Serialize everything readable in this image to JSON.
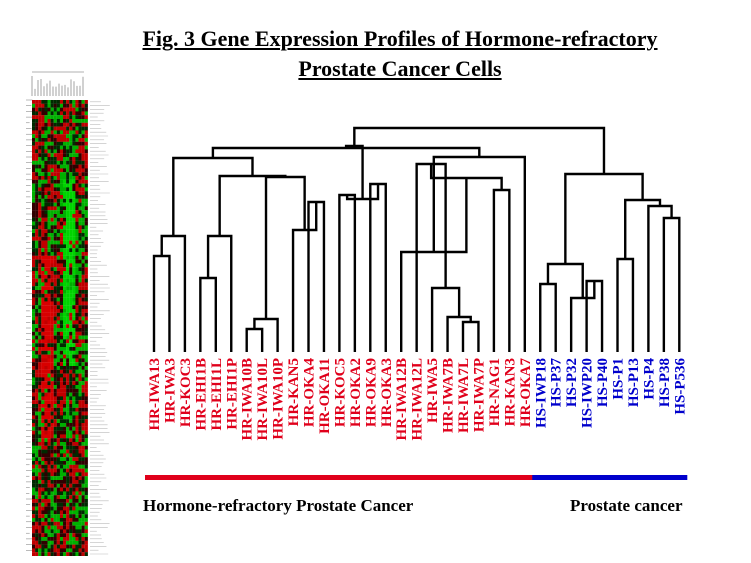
{
  "title": {
    "line1": "Fig. 3 Gene Expression Profiles of Hormone-refractory",
    "line2": "Prostate Cancer Cells"
  },
  "colors": {
    "hr": "#e0001b",
    "hs": "#0000cc",
    "heat_red": "#e00000",
    "heat_green": "#00c800",
    "heat_black": "#000000"
  },
  "samples": [
    {
      "label": "HR-IWA13",
      "group": "hr"
    },
    {
      "label": "HR-IWA3",
      "group": "hr"
    },
    {
      "label": "HR-KOC3",
      "group": "hr"
    },
    {
      "label": "HR-EHI1B",
      "group": "hr"
    },
    {
      "label": "HR-EHI1L",
      "group": "hr"
    },
    {
      "label": "HR-EHI1P",
      "group": "hr"
    },
    {
      "label": "HR-IWA10B",
      "group": "hr"
    },
    {
      "label": "HR-IWA10L",
      "group": "hr"
    },
    {
      "label": "HR-IWA10P",
      "group": "hr"
    },
    {
      "label": "HR-KAN5",
      "group": "hr"
    },
    {
      "label": "HR-OKA4",
      "group": "hr"
    },
    {
      "label": "HR-OKA11",
      "group": "hr"
    },
    {
      "label": "HR-KOC5",
      "group": "hr"
    },
    {
      "label": "HR-OKA2",
      "group": "hr"
    },
    {
      "label": "HR-OKA9",
      "group": "hr"
    },
    {
      "label": "HR-OKA3",
      "group": "hr"
    },
    {
      "label": "HR-IWA12B",
      "group": "hr"
    },
    {
      "label": "HR-IWA12L",
      "group": "hr"
    },
    {
      "label": "HR-IWA5",
      "group": "hr"
    },
    {
      "label": "HR-IWA7B",
      "group": "hr"
    },
    {
      "label": "HR-IWA7L",
      "group": "hr"
    },
    {
      "label": "HR-IWA7P",
      "group": "hr"
    },
    {
      "label": "HR-NAG1",
      "group": "hr"
    },
    {
      "label": "HR-KAN3",
      "group": "hr"
    },
    {
      "label": "HR-OKA7",
      "group": "hr"
    },
    {
      "label": "HS-IWP18",
      "group": "hs"
    },
    {
      "label": "HS-P37",
      "group": "hs"
    },
    {
      "label": "HS-P32",
      "group": "hs"
    },
    {
      "label": "HS-IWP20",
      "group": "hs"
    },
    {
      "label": "HS-P40",
      "group": "hs"
    },
    {
      "label": "HS-P1",
      "group": "hs"
    },
    {
      "label": "HS-P13",
      "group": "hs"
    },
    {
      "label": "HS-P4",
      "group": "hs"
    },
    {
      "label": "HS-P38",
      "group": "hs"
    },
    {
      "label": "HS-P536",
      "group": "hs"
    }
  ],
  "groups": {
    "hr_label": "Hormone-refractory Prostate Cancer",
    "hs_label": "Prostate cancer"
  }
}
